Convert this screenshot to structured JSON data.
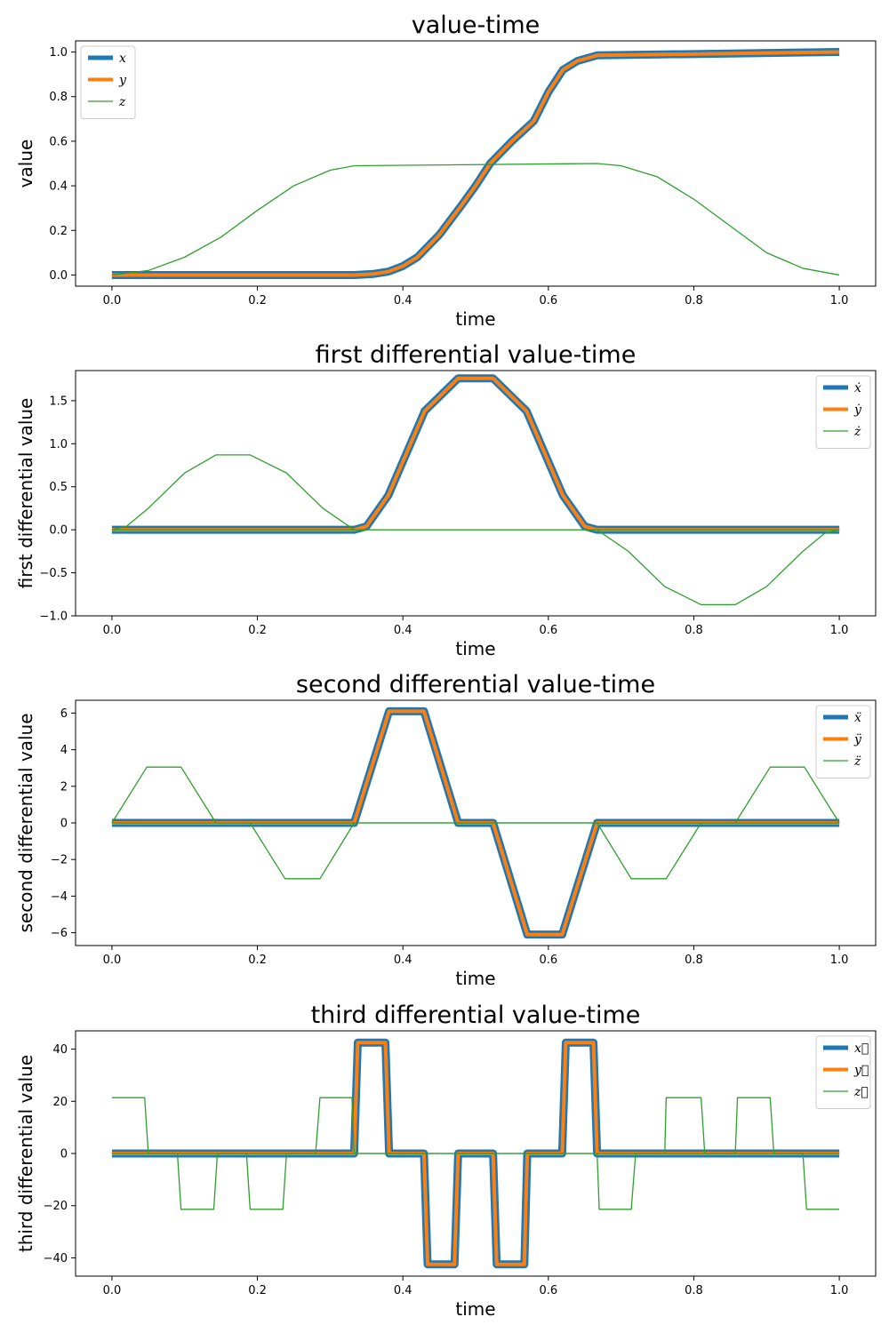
{
  "chart_data": [
    {
      "type": "line",
      "title": "value-time",
      "xlabel": "time",
      "ylabel": "value",
      "xlim": [
        -0.05,
        1.05
      ],
      "ylim": [
        -0.05,
        1.05
      ],
      "xticks": [
        0.0,
        0.2,
        0.4,
        0.6,
        0.8,
        1.0
      ],
      "xtick_labels": [
        "0.0",
        "0.2",
        "0.4",
        "0.6",
        "0.8",
        "1.0"
      ],
      "yticks": [
        0.0,
        0.2,
        0.4,
        0.6,
        0.8,
        1.0
      ],
      "ytick_labels": [
        "0.0",
        "0.2",
        "0.4",
        "0.6",
        "0.8",
        "1.0"
      ],
      "legend_position": "upper-left",
      "series": [
        {
          "name": "x",
          "legend_label": "x",
          "color": "#1f77b4",
          "linewidth": "thick",
          "x": [
            0,
            0.333,
            0.36,
            0.38,
            0.4,
            0.42,
            0.45,
            0.48,
            0.5,
            0.52,
            0.55,
            0.58,
            0.6,
            0.62,
            0.64,
            0.667,
            1.0
          ],
          "y": [
            0,
            0,
            0.005,
            0.015,
            0.04,
            0.08,
            0.18,
            0.31,
            0.4,
            0.5,
            0.6,
            0.69,
            0.82,
            0.92,
            0.96,
            0.985,
            1.0
          ]
        },
        {
          "name": "y",
          "legend_label": "y",
          "color": "#ff7f0e",
          "linewidth": "medium",
          "x": [
            0,
            0.333,
            0.36,
            0.38,
            0.4,
            0.42,
            0.45,
            0.48,
            0.5,
            0.52,
            0.55,
            0.58,
            0.6,
            0.62,
            0.64,
            0.667,
            1.0
          ],
          "y": [
            0,
            0,
            0.005,
            0.015,
            0.04,
            0.08,
            0.18,
            0.31,
            0.4,
            0.5,
            0.6,
            0.69,
            0.82,
            0.92,
            0.96,
            0.985,
            1.0
          ]
        },
        {
          "name": "z",
          "legend_label": "z",
          "color": "#2ca02c",
          "linewidth": "thin",
          "x": [
            0,
            0.05,
            0.1,
            0.15,
            0.2,
            0.25,
            0.3,
            0.333,
            0.667,
            0.7,
            0.75,
            0.8,
            0.85,
            0.9,
            0.95,
            1.0
          ],
          "y": [
            0,
            0.02,
            0.08,
            0.17,
            0.29,
            0.4,
            0.47,
            0.49,
            0.5,
            0.49,
            0.44,
            0.34,
            0.22,
            0.1,
            0.03,
            0
          ]
        }
      ]
    },
    {
      "type": "line",
      "title": "first differential value-time",
      "xlabel": "time",
      "ylabel": "first differential value",
      "xlim": [
        -0.05,
        1.05
      ],
      "ylim": [
        -1.0,
        1.85
      ],
      "xticks": [
        0.0,
        0.2,
        0.4,
        0.6,
        0.8,
        1.0
      ],
      "xtick_labels": [
        "0.0",
        "0.2",
        "0.4",
        "0.6",
        "0.8",
        "1.0"
      ],
      "yticks": [
        -1.0,
        -0.5,
        0.0,
        0.5,
        1.0,
        1.5
      ],
      "ytick_labels": [
        "−1.0",
        "−0.5",
        "0.0",
        "0.5",
        "1.0",
        "1.5"
      ],
      "legend_position": "upper-right",
      "series": [
        {
          "name": "x-dot",
          "legend_label": "ẋ",
          "color": "#1f77b4",
          "linewidth": "thick",
          "x": [
            0,
            0.333,
            0.35,
            0.38,
            0.43,
            0.476,
            0.524,
            0.57,
            0.62,
            0.65,
            0.667,
            1.0
          ],
          "y": [
            0,
            0,
            0.04,
            0.4,
            1.38,
            1.76,
            1.76,
            1.38,
            0.4,
            0.04,
            0,
            0
          ]
        },
        {
          "name": "y-dot",
          "legend_label": "ẏ",
          "color": "#ff7f0e",
          "linewidth": "medium",
          "x": [
            0,
            0.333,
            0.35,
            0.38,
            0.43,
            0.476,
            0.524,
            0.57,
            0.62,
            0.65,
            0.667,
            1.0
          ],
          "y": [
            0,
            0,
            0.04,
            0.4,
            1.38,
            1.76,
            1.76,
            1.38,
            0.4,
            0.04,
            0,
            0
          ]
        },
        {
          "name": "z-dot",
          "legend_label": "ż",
          "color": "#2ca02c",
          "linewidth": "thin",
          "x": [
            0,
            0.02,
            0.05,
            0.1,
            0.143,
            0.19,
            0.24,
            0.29,
            0.333,
            0.667,
            0.71,
            0.76,
            0.81,
            0.857,
            0.9,
            0.95,
            0.98,
            1.0
          ],
          "y": [
            0,
            0.04,
            0.25,
            0.66,
            0.87,
            0.87,
            0.66,
            0.25,
            0,
            0,
            -0.25,
            -0.66,
            -0.87,
            -0.87,
            -0.66,
            -0.25,
            -0.04,
            0
          ]
        },
        {
          "name": "z-dot-zero",
          "legend_label": "",
          "color": "#2ca02c",
          "linewidth": "thin",
          "x": [
            0,
            1.0
          ],
          "y": [
            0,
            0
          ]
        }
      ]
    },
    {
      "type": "line",
      "title": "second differential value-time",
      "xlabel": "time",
      "ylabel": "second differential value",
      "xlim": [
        -0.05,
        1.05
      ],
      "ylim": [
        -6.7,
        6.7
      ],
      "xticks": [
        0.0,
        0.2,
        0.4,
        0.6,
        0.8,
        1.0
      ],
      "xtick_labels": [
        "0.0",
        "0.2",
        "0.4",
        "0.6",
        "0.8",
        "1.0"
      ],
      "yticks": [
        -6,
        -4,
        -2,
        0,
        2,
        4,
        6
      ],
      "ytick_labels": [
        "−6",
        "−4",
        "−2",
        "0",
        "2",
        "4",
        "6"
      ],
      "legend_position": "upper-right",
      "series": [
        {
          "name": "x-ddot",
          "legend_label": "ẍ",
          "color": "#1f77b4",
          "linewidth": "thick",
          "x": [
            0,
            0.333,
            0.381,
            0.429,
            0.476,
            0.524,
            0.571,
            0.619,
            0.667,
            1.0
          ],
          "y": [
            0,
            0,
            6.1,
            6.1,
            0,
            0,
            -6.1,
            -6.1,
            0,
            0
          ]
        },
        {
          "name": "y-ddot",
          "legend_label": "ÿ",
          "color": "#ff7f0e",
          "linewidth": "medium",
          "x": [
            0,
            0.333,
            0.381,
            0.429,
            0.476,
            0.524,
            0.571,
            0.619,
            0.667,
            1.0
          ],
          "y": [
            0,
            0,
            6.1,
            6.1,
            0,
            0,
            -6.1,
            -6.1,
            0,
            0
          ]
        },
        {
          "name": "z-ddot",
          "legend_label": "z̈",
          "color": "#2ca02c",
          "linewidth": "thin",
          "x": [
            0,
            0.048,
            0.095,
            0.143,
            0.19,
            0.238,
            0.286,
            0.333,
            0.667,
            0.714,
            0.762,
            0.81,
            0.857,
            0.905,
            0.952,
            1.0
          ],
          "y": [
            0,
            3.05,
            3.05,
            0,
            0,
            -3.05,
            -3.05,
            0,
            0,
            -3.05,
            -3.05,
            0,
            0,
            3.05,
            3.05,
            0
          ]
        },
        {
          "name": "z-ddot-zero",
          "legend_label": "",
          "color": "#2ca02c",
          "linewidth": "thin",
          "x": [
            0,
            1.0
          ],
          "y": [
            0,
            0
          ]
        }
      ]
    },
    {
      "type": "line",
      "title": "third differential value-time",
      "xlabel": "time",
      "ylabel": "third differential value",
      "xlim": [
        -0.05,
        1.05
      ],
      "ylim": [
        -47,
        47
      ],
      "xticks": [
        0.0,
        0.2,
        0.4,
        0.6,
        0.8,
        1.0
      ],
      "xtick_labels": [
        "0.0",
        "0.2",
        "0.4",
        "0.6",
        "0.8",
        "1.0"
      ],
      "yticks": [
        -40,
        -20,
        0,
        20,
        40
      ],
      "ytick_labels": [
        "−40",
        "−20",
        "0",
        "20",
        "40"
      ],
      "legend_position": "upper-right",
      "series": [
        {
          "name": "x-dddot",
          "legend_label": "x⃛",
          "color": "#1f77b4",
          "linewidth": "thick",
          "x": [
            0,
            0.333,
            0.338,
            0.376,
            0.381,
            0.429,
            0.434,
            0.471,
            0.476,
            0.524,
            0.529,
            0.567,
            0.571,
            0.619,
            0.624,
            0.662,
            0.667,
            1.0
          ],
          "y": [
            0,
            0,
            42.5,
            42.5,
            0,
            0,
            -42.5,
            -42.5,
            0,
            0,
            -42.5,
            -42.5,
            0,
            0,
            42.5,
            42.5,
            0,
            0
          ]
        },
        {
          "name": "y-dddot",
          "legend_label": "y⃛",
          "color": "#ff7f0e",
          "linewidth": "medium",
          "x": [
            0,
            0.333,
            0.338,
            0.376,
            0.381,
            0.429,
            0.434,
            0.471,
            0.476,
            0.524,
            0.529,
            0.567,
            0.571,
            0.619,
            0.624,
            0.662,
            0.667,
            1.0
          ],
          "y": [
            0,
            0,
            42.5,
            42.5,
            0,
            0,
            -42.5,
            -42.5,
            0,
            0,
            -42.5,
            -42.5,
            0,
            0,
            42.5,
            42.5,
            0,
            0
          ]
        },
        {
          "name": "z-dddot",
          "legend_label": "z⃛",
          "color": "#2ca02c",
          "linewidth": "thin",
          "x": [
            0,
            0.045,
            0.05,
            0.09,
            0.095,
            0.14,
            0.145,
            0.185,
            0.19,
            0.235,
            0.24,
            0.28,
            0.286,
            0.33,
            0.333,
            0.667,
            0.67,
            0.714,
            0.72,
            0.76,
            0.762,
            0.81,
            0.815,
            0.857,
            0.86,
            0.905,
            0.91,
            0.95,
            0.955,
            1.0
          ],
          "y": [
            21.4,
            21.4,
            0,
            0,
            -21.4,
            -21.4,
            0,
            0,
            -21.4,
            -21.4,
            0,
            0,
            21.4,
            21.4,
            0,
            0,
            -21.4,
            -21.4,
            0,
            0,
            21.4,
            21.4,
            0,
            0,
            21.4,
            21.4,
            0,
            0,
            -21.4,
            -21.4
          ]
        },
        {
          "name": "z-dddot-zero",
          "legend_label": "",
          "color": "#2ca02c",
          "linewidth": "thin",
          "x": [
            0,
            1.0
          ],
          "y": [
            0,
            0
          ]
        }
      ]
    }
  ]
}
